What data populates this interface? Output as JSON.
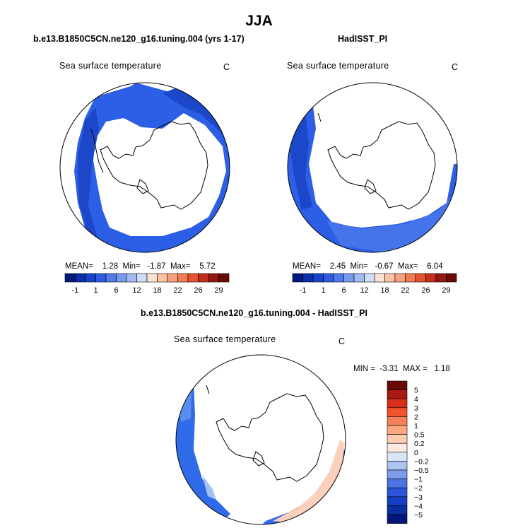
{
  "title": "JJA",
  "panels": {
    "left": {
      "subtitle": "b.e13.B1850C5CN.ne120_g16.tuning.004 (yrs 1-17)",
      "label": "Sea surface temperature",
      "units": "C",
      "stats": {
        "mean_label": "MEAN=",
        "mean": "1.28",
        "min_label": "Min=",
        "min": "-1.87",
        "max_label": "Max=",
        "max": "5.72"
      }
    },
    "right": {
      "subtitle": "HadISST_PI",
      "label": "Sea surface temperature",
      "units": "C",
      "stats": {
        "mean_label": "MEAN=",
        "mean": "2.45",
        "min_label": "Min=",
        "min": "-0.67",
        "max_label": "Max=",
        "max": "6.04"
      }
    },
    "diff": {
      "subtitle": "b.e13.B1850C5CN.ne120_g16.tuning.004 - HadISST_PI",
      "label": "Sea surface temperature",
      "units": "C",
      "stats": {
        "min_label": "MIN =",
        "min": "-3.31",
        "max_label": "MAX =",
        "max": "1.18"
      }
    }
  },
  "chart_data": [
    {
      "type": "heatmap",
      "title": "Sea surface temperature",
      "units": "C",
      "projection": "south polar stereographic",
      "dataset": "b.e13.B1850C5CN.ne120_g16.tuning.004 (yrs 1-17)",
      "mean": 1.28,
      "min": -1.87,
      "max": 5.72,
      "colorbar": {
        "levels": [
          -1,
          0,
          1,
          3,
          6,
          9,
          12,
          15,
          18,
          20,
          22,
          24,
          26,
          28,
          29
        ],
        "tick_labels": [
          "-1",
          "1",
          "6",
          "12",
          "18",
          "22",
          "26",
          "29"
        ],
        "colors": [
          "#001a80",
          "#0a2fa8",
          "#1444cc",
          "#2f5be0",
          "#4f7ae8",
          "#7799ee",
          "#a3bbf2",
          "#cfdcf8",
          "#fde2d4",
          "#fcc3a8",
          "#f9a17c",
          "#f27b52",
          "#e4532f",
          "#c42f1b",
          "#94180e",
          "#6a0a06"
        ]
      }
    },
    {
      "type": "heatmap",
      "title": "Sea surface temperature",
      "units": "C",
      "projection": "south polar stereographic",
      "dataset": "HadISST_PI",
      "mean": 2.45,
      "min": -0.67,
      "max": 6.04,
      "colorbar": {
        "levels": [
          -1,
          0,
          1,
          3,
          6,
          9,
          12,
          15,
          18,
          20,
          22,
          24,
          26,
          28,
          29
        ],
        "tick_labels": [
          "-1",
          "1",
          "6",
          "12",
          "18",
          "22",
          "26",
          "29"
        ],
        "colors": [
          "#001a80",
          "#0a2fa8",
          "#1444cc",
          "#2f5be0",
          "#4f7ae8",
          "#7799ee",
          "#a3bbf2",
          "#cfdcf8",
          "#fde2d4",
          "#fcc3a8",
          "#f9a17c",
          "#f27b52",
          "#e4532f",
          "#c42f1b",
          "#94180e",
          "#6a0a06"
        ]
      }
    },
    {
      "type": "heatmap",
      "title": "Sea surface temperature",
      "units": "C",
      "projection": "south polar stereographic",
      "dataset": "b.e13.B1850C5CN.ne120_g16.tuning.004 - HadISST_PI",
      "min": -3.31,
      "max": 1.18,
      "colorbar": {
        "levels": [
          -5,
          -4,
          -3,
          -2,
          -1,
          -0.5,
          -0.2,
          0,
          0.2,
          0.5,
          1,
          2,
          3,
          4,
          5
        ],
        "tick_labels": [
          "5",
          "4",
          "3",
          "2",
          "1",
          "0.5",
          "0.2",
          "0",
          "−0.2",
          "−0.5",
          "−1",
          "−2",
          "−3",
          "−4",
          "−5"
        ],
        "colors": [
          "#6a0a06",
          "#a8190f",
          "#d9301c",
          "#f0532e",
          "#f6805a",
          "#f9a882",
          "#fccdb2",
          "#fde9df",
          "#d9e4f7",
          "#aec4f0",
          "#7d9ce9",
          "#4d74e2",
          "#2a55d8",
          "#143fc2",
          "#0a2ea0",
          "#03177a"
        ]
      }
    }
  ]
}
